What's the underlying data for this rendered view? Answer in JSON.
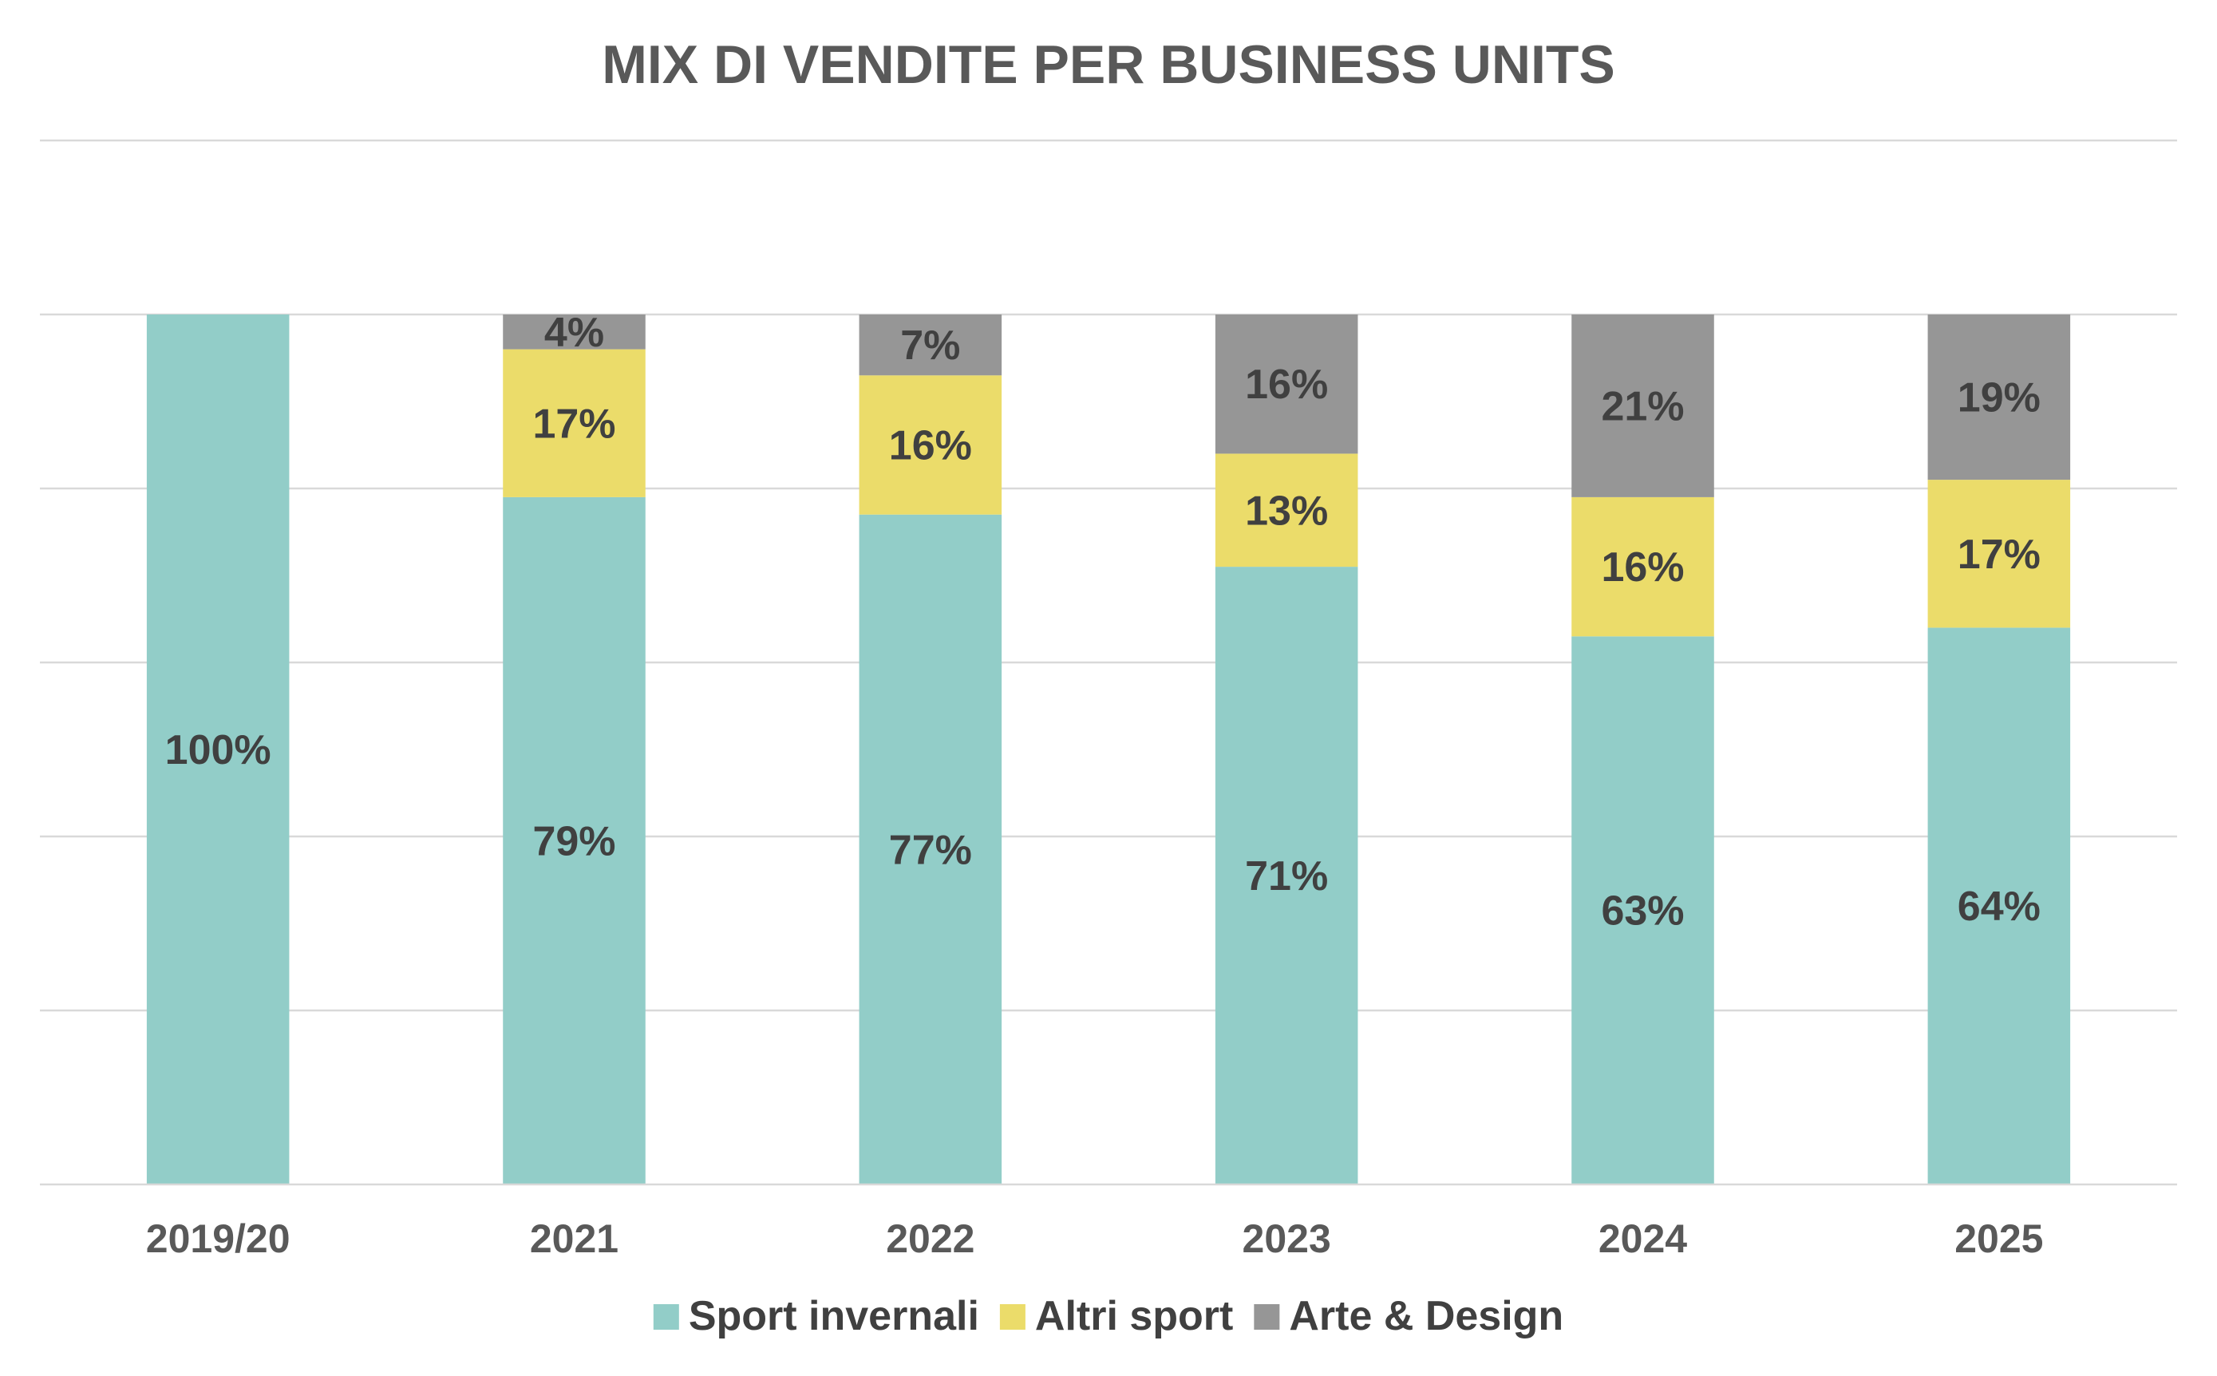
{
  "chart_data": {
    "type": "bar",
    "stacked": true,
    "title": "MIX DI VENDITE PER BUSINESS UNITS",
    "categories": [
      "2019/20",
      "2021",
      "2022",
      "2023",
      "2024",
      "2025"
    ],
    "series": [
      {
        "name": "Sport invernali",
        "color": "#92cdc8",
        "values": [
          100,
          79,
          77,
          71,
          63,
          64
        ],
        "labels": [
          "100%",
          "79%",
          "77%",
          "71%",
          "63%",
          "64%"
        ]
      },
      {
        "name": "Altri sport",
        "color": "#ebdc6a",
        "values": [
          0,
          17,
          16,
          13,
          16,
          17
        ],
        "labels": [
          "",
          "17%",
          "16%",
          "13%",
          "16%",
          "17%"
        ]
      },
      {
        "name": "Arte & Design",
        "color": "#969696",
        "values": [
          0,
          4,
          7,
          16,
          21,
          19
        ],
        "labels": [
          "",
          "4%",
          "7%",
          "16%",
          "21%",
          "19%"
        ]
      }
    ],
    "ylim": [
      0,
      120
    ],
    "grid_step": 20,
    "grid": true,
    "y_tick_labels_visible": false,
    "legend_position": "bottom"
  }
}
